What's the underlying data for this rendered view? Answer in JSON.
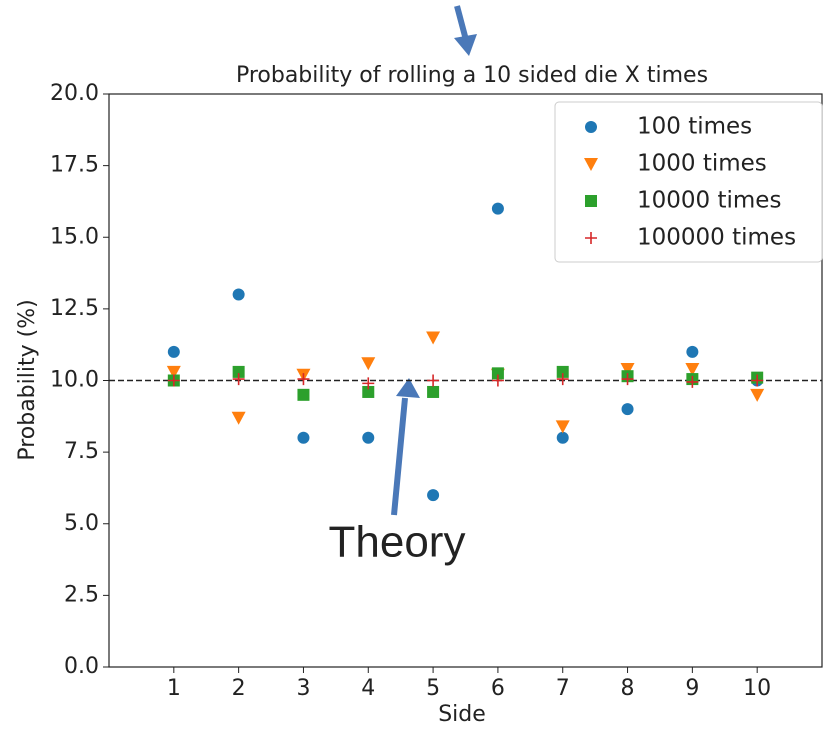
{
  "chart_data": {
    "type": "scatter",
    "title": "Probability of rolling a 10 sided die X times",
    "xlabel": "Side",
    "ylabel": "Probability (%)",
    "annotation": "Theory",
    "x": [
      1,
      2,
      3,
      4,
      5,
      6,
      7,
      8,
      9,
      10
    ],
    "series": [
      {
        "name": "100 times",
        "color": "#1f77b4",
        "marker": "circle",
        "values": [
          11,
          13,
          8,
          8,
          6,
          16,
          8,
          9,
          11,
          10
        ]
      },
      {
        "name": "1000 times",
        "color": "#ff7f0e",
        "marker": "triangle-down",
        "values": [
          10.3,
          8.7,
          10.2,
          10.6,
          11.5,
          10.2,
          8.4,
          10.4,
          10.4,
          9.5
        ]
      },
      {
        "name": "10000 times",
        "color": "#2ca02c",
        "marker": "square",
        "values": [
          10.0,
          10.3,
          9.5,
          9.6,
          9.6,
          10.25,
          10.3,
          10.15,
          10.05,
          10.1
        ]
      },
      {
        "name": "100000 times",
        "color": "#d62728",
        "marker": "plus",
        "values": [
          10.0,
          10.05,
          10.05,
          9.9,
          10.0,
          10.0,
          10.05,
          10.05,
          9.95,
          10.0
        ]
      }
    ],
    "theory_line": 10,
    "xlim": [
      0,
      11
    ],
    "ylim": [
      0,
      20
    ],
    "xticks": [
      1,
      2,
      3,
      4,
      5,
      6,
      7,
      8,
      9,
      10
    ],
    "yticks": [
      {
        "value": 0,
        "label": "0.0"
      },
      2.5,
      {
        "value": 5,
        "label": "5.0"
      },
      7.5,
      {
        "value": 10,
        "label": "10.0"
      },
      12.5,
      {
        "value": 15,
        "label": "15.0"
      },
      17.5,
      {
        "value": 20,
        "label": "20.0"
      }
    ],
    "legend": "upper right"
  }
}
